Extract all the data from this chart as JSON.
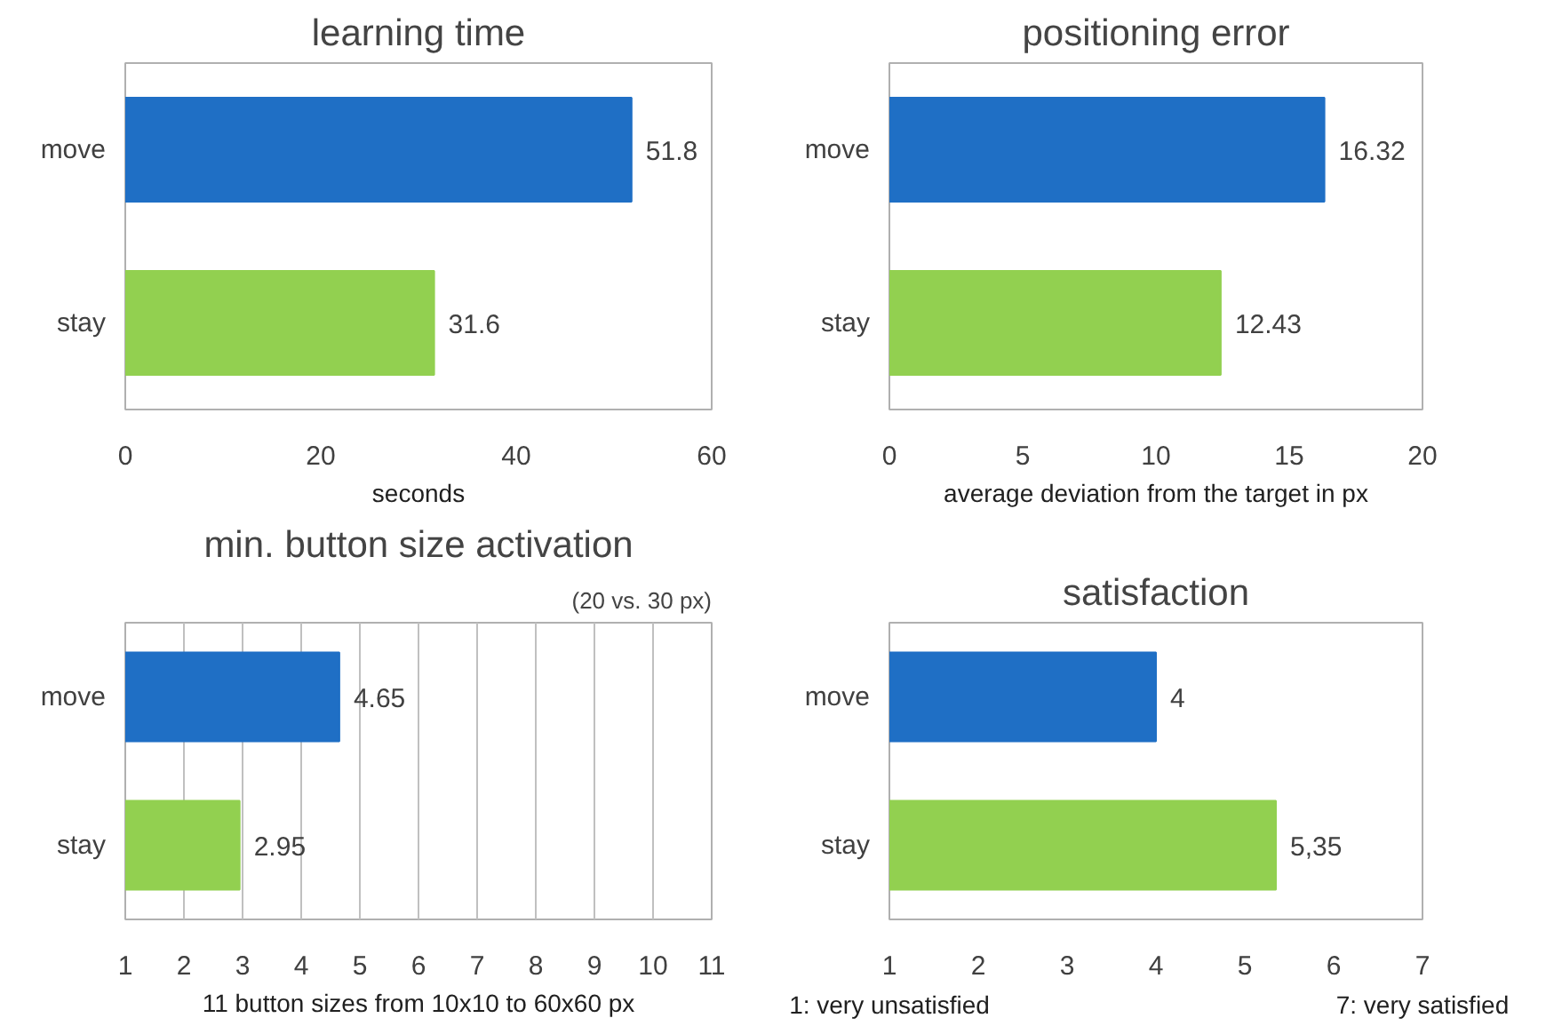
{
  "chart_data": [
    {
      "type": "bar",
      "orientation": "horizontal",
      "title": "learning time",
      "xlabel": "seconds",
      "categories": [
        "move",
        "stay"
      ],
      "values": [
        51.8,
        31.6
      ],
      "colors": [
        "#1f6fc5",
        "#92d050"
      ],
      "xlim": [
        0,
        60
      ],
      "xticks": [
        0,
        20,
        40,
        60
      ],
      "grid": false,
      "data_labels": true
    },
    {
      "type": "bar",
      "orientation": "horizontal",
      "title": "positioning error",
      "xlabel": "average deviation from the target in px",
      "categories": [
        "move",
        "stay"
      ],
      "values": [
        16.32,
        12.43
      ],
      "colors": [
        "#1f6fc5",
        "#92d050"
      ],
      "xlim": [
        0,
        20
      ],
      "xticks": [
        0,
        5,
        10,
        15,
        20
      ],
      "grid": false,
      "data_labels": true
    },
    {
      "type": "bar",
      "orientation": "horizontal",
      "title": "min. button size activation",
      "subtitle": "(20 vs. 30 px)",
      "xlabel": "11 button sizes from 10x10 to 60x60 px",
      "categories": [
        "move",
        "stay"
      ],
      "values": [
        4.65,
        2.95
      ],
      "colors": [
        "#1f6fc5",
        "#92d050"
      ],
      "xlim": [
        1,
        11
      ],
      "xticks": [
        1,
        2,
        3,
        4,
        5,
        6,
        7,
        8,
        9,
        10,
        11
      ],
      "grid": "x",
      "data_labels": true
    },
    {
      "type": "bar",
      "orientation": "horizontal",
      "title": "satisfaction",
      "categories": [
        "move",
        "stay"
      ],
      "values": [
        4,
        5.35
      ],
      "value_labels": [
        "4",
        "5,35"
      ],
      "colors": [
        "#1f6fc5",
        "#92d050"
      ],
      "xlim": [
        1,
        7
      ],
      "xticks": [
        1,
        2,
        3,
        4,
        5,
        6,
        7
      ],
      "grid": false,
      "annotations": [
        "1: very unsatisfied",
        "7: very satisfied"
      ]
    }
  ]
}
